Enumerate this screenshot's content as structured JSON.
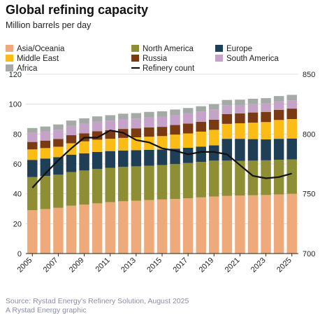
{
  "chart_data": {
    "type": "bar",
    "stacked": true,
    "title": "Global refining capacity",
    "subtitle": "Million barrels per day",
    "x": [
      2005,
      2006,
      2007,
      2008,
      2009,
      2010,
      2011,
      2012,
      2013,
      2014,
      2015,
      2016,
      2017,
      2018,
      2019,
      2020,
      2021,
      2022,
      2023,
      2024,
      2025
    ],
    "x_tick_labels": [
      "2005",
      "2007",
      "2009",
      "2011",
      "2013",
      "2015",
      "2017",
      "2019",
      "2021",
      "2023",
      "2025"
    ],
    "y_left": {
      "min": 0,
      "max": 120,
      "ticks": [
        "0",
        "20",
        "40",
        "60",
        "80",
        "100",
        "120"
      ]
    },
    "y_right": {
      "min": 700,
      "max": 850,
      "ticks": [
        "700",
        "750",
        "800",
        "850"
      ]
    },
    "grid": true,
    "legend_placement": "top",
    "series": [
      {
        "name": "Asia/Oceania",
        "color": "#eeaa7b",
        "values": [
          29,
          29.8,
          30.6,
          32,
          32.8,
          33.6,
          34.4,
          35,
          35.4,
          35.8,
          36.2,
          36.5,
          37,
          37.6,
          38.2,
          38.6,
          38.8,
          39,
          39.2,
          39.6,
          40
        ]
      },
      {
        "name": "North America",
        "color": "#8e8e34",
        "values": [
          22.2,
          22.2,
          22.2,
          22.6,
          22.8,
          23,
          23,
          23,
          23,
          23,
          23,
          23.4,
          23.6,
          23.8,
          24,
          23.6,
          23.2,
          23.2,
          23.2,
          23.2,
          23
        ]
      },
      {
        "name": "Europe",
        "color": "#1e3f55",
        "values": [
          11.5,
          11.6,
          11.7,
          11.6,
          11.5,
          11.4,
          11.2,
          11,
          10.8,
          10.6,
          10.4,
          10.3,
          10.2,
          10.2,
          10.2,
          14.6,
          14.8,
          14.4,
          14,
          14,
          14
        ]
      },
      {
        "name": "Middle East",
        "color": "#fbbc15",
        "values": [
          7,
          7,
          7,
          7.6,
          8,
          8.2,
          8.2,
          8.4,
          8.6,
          8.8,
          9,
          9.4,
          9.6,
          10,
          10.4,
          10,
          10.4,
          11,
          11.6,
          12.6,
          13
        ]
      },
      {
        "name": "Russia",
        "color": "#7a3a14",
        "values": [
          5,
          5,
          5.2,
          5.4,
          5.4,
          5.6,
          5.8,
          6,
          6,
          6.2,
          6.2,
          6.4,
          6.6,
          6.6,
          6.8,
          6.6,
          6.6,
          6.8,
          6.8,
          6.8,
          7
        ]
      },
      {
        "name": "South America",
        "color": "#c5a2c8",
        "values": [
          6,
          6,
          6.2,
          6.2,
          6.4,
          6.4,
          6.4,
          6.6,
          6.6,
          6.8,
          6.8,
          6.8,
          6.8,
          6.8,
          6.8,
          5.8,
          5.6,
          5.6,
          5.6,
          5.6,
          5.6
        ]
      },
      {
        "name": "Africa",
        "color": "#a4aaa6",
        "values": [
          3.3,
          3.4,
          3.5,
          3.6,
          3.6,
          3.6,
          3.6,
          3.6,
          3.6,
          3.6,
          3.6,
          3.6,
          3.6,
          3.6,
          3.6,
          3.6,
          3.6,
          3.6,
          3.6,
          3.6,
          3.6
        ]
      }
    ],
    "line_series": {
      "name": "Refinery count",
      "color": "#111111",
      "axis": "right",
      "values": [
        755,
        767,
        778,
        788,
        797,
        797,
        803,
        801,
        795,
        793,
        788,
        786,
        783,
        785,
        785,
        783,
        774,
        765,
        763,
        764,
        767
      ]
    },
    "legend": [
      {
        "label": "Asia/Oceania",
        "kind": "swatch",
        "color": "#eeaa7b"
      },
      {
        "label": "North America",
        "kind": "swatch",
        "color": "#8e8e34"
      },
      {
        "label": "Europe",
        "kind": "swatch",
        "color": "#1e3f55"
      },
      {
        "label": "Middle East",
        "kind": "swatch",
        "color": "#fbbc15"
      },
      {
        "label": "Russia",
        "kind": "swatch",
        "color": "#7a3a14"
      },
      {
        "label": "South America",
        "kind": "swatch",
        "color": "#c5a2c8"
      },
      {
        "label": "Africa",
        "kind": "swatch",
        "color": "#a4aaa6"
      },
      {
        "label": "Refinery count",
        "kind": "line",
        "color": "#111111"
      }
    ],
    "source": "Source: Rystad Energy's Refinery Solution, August 2025",
    "credit": "A Rystad Energy graphic"
  }
}
